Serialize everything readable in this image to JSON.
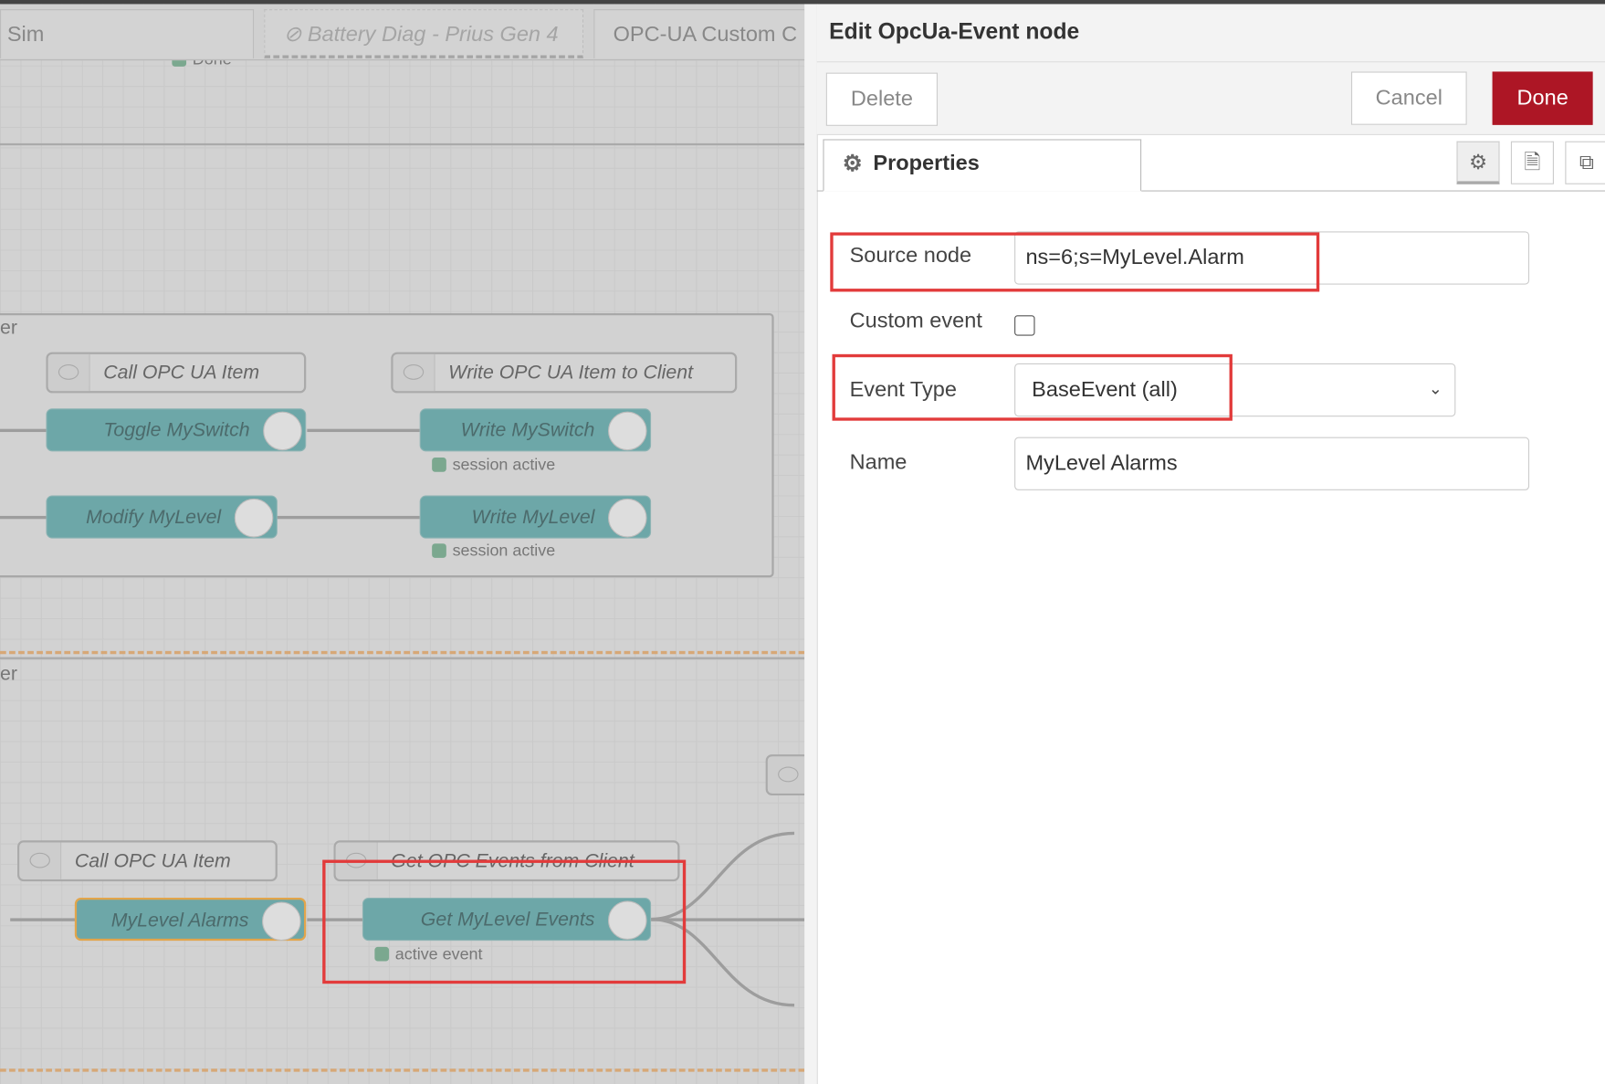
{
  "workspace_tabs": [
    {
      "label": "Sim",
      "disabled": false
    },
    {
      "label": "⊘ Battery Diag - Prius Gen 4",
      "disabled": true
    },
    {
      "label": "OPC-UA Custom C",
      "disabled": false
    }
  ],
  "canvas": {
    "top_status": "Done",
    "group_labels": [
      "er",
      "er"
    ],
    "comments": [
      "Call OPC UA Item",
      "Write OPC UA Item to Client",
      "Call OPC UA Item",
      "Get OPC Events from Client"
    ],
    "nodes": [
      "Toggle MySwitch",
      "Write MySwitch",
      "Modify MyLevel",
      "Write MyLevel",
      "MyLevel Alarms",
      "Get MyLevel Events"
    ],
    "node_icon_label": "OPC UA",
    "statuses": [
      "session active",
      "session active",
      "active event"
    ]
  },
  "panel": {
    "title": "Edit OpcUa-Event node",
    "delete": "Delete",
    "cancel": "Cancel",
    "done": "Done",
    "tab": "Properties",
    "fields": {
      "source_node": {
        "label": "Source node",
        "value": "ns=6;s=MyLevel.Alarm"
      },
      "custom_event": {
        "label": "Custom event",
        "checked": false
      },
      "event_type": {
        "label": "Event Type",
        "value": "BaseEvent (all)"
      },
      "name": {
        "label": "Name",
        "value": "MyLevel Alarms"
      }
    }
  },
  "colors": {
    "done": "#ad1625",
    "node": "#6da7a8",
    "highlight": "#e23b3b"
  }
}
